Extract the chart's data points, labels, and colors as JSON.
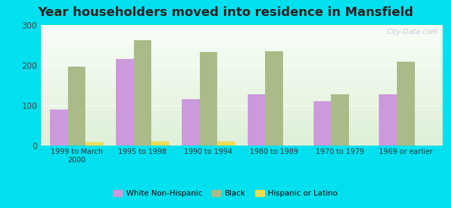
{
  "title": "Year householders moved into residence in Mansfield",
  "categories": [
    "1999 to March\n2000",
    "1995 to 1998",
    "1990 to 1994",
    "1980 to 1989",
    "1970 to 1979",
    "1969 or earlier"
  ],
  "white_non_hispanic": [
    90,
    215,
    115,
    128,
    110,
    128
  ],
  "black": [
    197,
    262,
    233,
    234,
    127,
    208
  ],
  "hispanic_or_latino": [
    8,
    10,
    10,
    0,
    0,
    0
  ],
  "bar_colors": {
    "white": "#cc99dd",
    "black": "#aabb88",
    "hispanic": "#eedb55"
  },
  "background_outer": "#00e0ee",
  "background_plot_top": "#f8fef8",
  "background_plot_bottom": "#dff0d8",
  "ylim": [
    0,
    300
  ],
  "yticks": [
    0,
    100,
    200,
    300
  ],
  "title_fontsize": 13,
  "legend_labels": [
    "White Non-Hispanic",
    "Black",
    "Hispanic or Latino"
  ]
}
